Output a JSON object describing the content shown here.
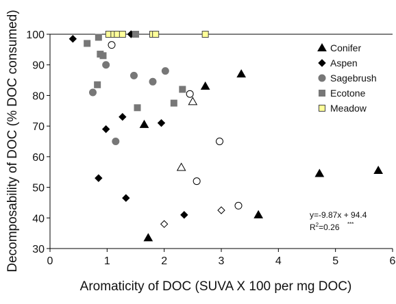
{
  "chart_data": {
    "type": "scatter",
    "xlabel": "Aromaticity of DOC  (SUVA X 100 per mg DOC)",
    "ylabel": "Decomposability of  DOC (% DOC consumed)",
    "xlim": [
      0,
      6
    ],
    "ylim": [
      30,
      100
    ],
    "xticks": [
      "0",
      "1",
      "2",
      "3",
      "4",
      "5",
      "6"
    ],
    "yticks": [
      "30",
      "40",
      "50",
      "60",
      "70",
      "80",
      "90",
      "100"
    ],
    "grid": false,
    "legend_position": "top-right",
    "series": [
      {
        "name": "Conifer",
        "marker": "triangle",
        "color": "#000000",
        "points": [
          {
            "x": 1.65,
            "y": 70.5,
            "filled": true
          },
          {
            "x": 2.72,
            "y": 83.0,
            "filled": true
          },
          {
            "x": 3.35,
            "y": 87.0,
            "filled": true
          },
          {
            "x": 1.72,
            "y": 33.5,
            "filled": true
          },
          {
            "x": 3.65,
            "y": 41.0,
            "filled": true
          },
          {
            "x": 4.72,
            "y": 54.5,
            "filled": true
          },
          {
            "x": 5.75,
            "y": 55.5,
            "filled": true
          },
          {
            "x": 2.3,
            "y": 56.5,
            "filled": false
          },
          {
            "x": 2.5,
            "y": 78.0,
            "filled": false
          }
        ]
      },
      {
        "name": "Aspen",
        "marker": "diamond",
        "color": "#000000",
        "points": [
          {
            "x": 0.4,
            "y": 98.5,
            "filled": true
          },
          {
            "x": 0.85,
            "y": 53.0,
            "filled": true
          },
          {
            "x": 0.98,
            "y": 69.0,
            "filled": true
          },
          {
            "x": 1.27,
            "y": 73.0,
            "filled": true
          },
          {
            "x": 1.33,
            "y": 46.5,
            "filled": true
          },
          {
            "x": 1.95,
            "y": 71.0,
            "filled": true
          },
          {
            "x": 2.35,
            "y": 41.0,
            "filled": true
          },
          {
            "x": 1.42,
            "y": 100.0,
            "filled": true
          },
          {
            "x": 2.0,
            "y": 38.0,
            "filled": false
          },
          {
            "x": 3.0,
            "y": 42.5,
            "filled": false
          }
        ]
      },
      {
        "name": "Sagebrush",
        "marker": "circle",
        "color": "#777777",
        "points": [
          {
            "x": 0.75,
            "y": 81.0,
            "filled": true
          },
          {
            "x": 0.98,
            "y": 90.0,
            "filled": true
          },
          {
            "x": 1.15,
            "y": 65.0,
            "filled": true
          },
          {
            "x": 1.47,
            "y": 86.5,
            "filled": true
          },
          {
            "x": 1.8,
            "y": 84.5,
            "filled": true
          },
          {
            "x": 2.02,
            "y": 88.0,
            "filled": true
          },
          {
            "x": 1.08,
            "y": 96.5,
            "filled": false
          },
          {
            "x": 2.45,
            "y": 80.5,
            "filled": false
          },
          {
            "x": 2.57,
            "y": 52.0,
            "filled": false
          },
          {
            "x": 2.97,
            "y": 65.0,
            "filled": false
          },
          {
            "x": 3.3,
            "y": 44.0,
            "filled": false
          }
        ]
      },
      {
        "name": "Ecotone",
        "marker": "square",
        "color": "#777777",
        "points": [
          {
            "x": 0.65,
            "y": 97.0,
            "filled": true
          },
          {
            "x": 0.85,
            "y": 99.0,
            "filled": true
          },
          {
            "x": 0.88,
            "y": 93.5,
            "filled": true
          },
          {
            "x": 0.93,
            "y": 93.0,
            "filled": true
          },
          {
            "x": 0.83,
            "y": 83.5,
            "filled": true
          },
          {
            "x": 1.53,
            "y": 76.0,
            "filled": true
          },
          {
            "x": 2.17,
            "y": 77.5,
            "filled": true
          },
          {
            "x": 2.32,
            "y": 82.0,
            "filled": true
          },
          {
            "x": 1.5,
            "y": 100.0,
            "filled": true
          }
        ]
      },
      {
        "name": "Meadow",
        "marker": "square",
        "color": "#ffff99",
        "points": [
          {
            "x": 1.03,
            "y": 100.0,
            "filled": true
          },
          {
            "x": 1.12,
            "y": 100.0,
            "filled": true
          },
          {
            "x": 1.18,
            "y": 100.0,
            "filled": true
          },
          {
            "x": 1.27,
            "y": 100.0,
            "filled": true
          },
          {
            "x": 1.8,
            "y": 100.0,
            "filled": true
          },
          {
            "x": 1.85,
            "y": 100.0,
            "filled": true
          },
          {
            "x": 2.72,
            "y": 100.0,
            "filled": true
          }
        ]
      }
    ],
    "annotation": {
      "equation": "y=-9.87x + 94.4",
      "r2_prefix": "R",
      "r2_exp": "2",
      "r2_value": "=0.26",
      "significance": "***"
    }
  }
}
